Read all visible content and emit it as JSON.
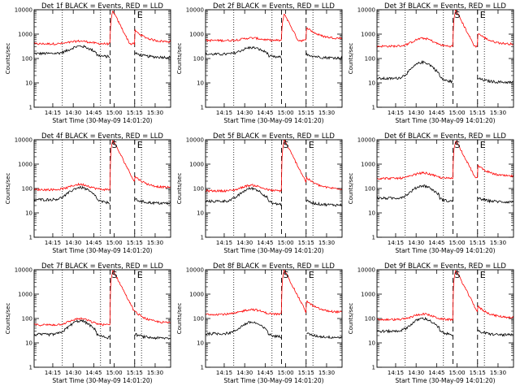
{
  "chart_data": {
    "type": "line",
    "x_unit": "UT",
    "y_scale": "log",
    "ylim": [
      1,
      10000
    ],
    "ylabel": "Counts/sec",
    "yticks": [
      1,
      10,
      100,
      1000,
      10000
    ],
    "ytick_labels": [
      "1",
      "10",
      "100",
      "1000",
      "10000"
    ],
    "xrange": [
      "14:01:20",
      "15:41:20"
    ],
    "xticks": [
      "14:15",
      "14:30",
      "14:45",
      "15:00",
      "15:15",
      "15:30"
    ],
    "dotted_lines": [
      "14:22",
      "14:50",
      "15:20"
    ],
    "dashed_lines": [
      "14:57",
      "15:15"
    ],
    "marker_labels": {
      "start": "S",
      "end": "E"
    },
    "colors": {
      "events": "#000000",
      "lld": "#ff0000"
    },
    "series_names": [
      "BLACK = Events",
      "RED = LLD"
    ],
    "panels": [
      {
        "title": "Det 1f BLACK = Events, RED = LLD",
        "xlabel": "Start Time (30-May-09 14:01:20)",
        "events_base": 160,
        "events_peak": 320,
        "lld_base": 400,
        "lld_flare": 9000,
        "show_s": false,
        "show_e": true
      },
      {
        "title": "Det 2f BLACK = Events, RED = LLD",
        "xlabel": "Start Time (30-May-09 14:01:20)",
        "events_base": 150,
        "events_peak": 280,
        "lld_base": 550,
        "lld_flare": 7000,
        "show_s": false,
        "show_e": false
      },
      {
        "title": "Det 3f BLACK = Events, RED = LLD",
        "xlabel": "Start Time (30-May-09 14:01:20)",
        "events_base": 15,
        "events_peak": 70,
        "lld_base": 320,
        "lld_flare": 10000,
        "show_s": true,
        "show_e": true
      },
      {
        "title": "Det 4f BLACK = Events, RED = LLD",
        "xlabel": "Start Time (30-May-09 14:01:20)",
        "events_base": 35,
        "events_peak": 110,
        "lld_base": 90,
        "lld_flare": 10000,
        "show_s": true,
        "show_e": true
      },
      {
        "title": "Det 5f BLACK = Events, RED = LLD",
        "xlabel": "Start Time (30-May-09 14:01:20)",
        "events_base": 30,
        "events_peak": 100,
        "lld_base": 80,
        "lld_flare": 10000,
        "show_s": true,
        "show_e": true
      },
      {
        "title": "Det 6f BLACK = Events, RED = LLD",
        "xlabel": "Start Time (30-May-09 14:01:20)",
        "events_base": 40,
        "events_peak": 130,
        "lld_base": 260,
        "lld_flare": 10000,
        "show_s": true,
        "show_e": true
      },
      {
        "title": "Det 7f BLACK = Events, RED = LLD",
        "xlabel": "Start Time (30-May-09 14:01:20)",
        "events_base": 22,
        "events_peak": 80,
        "lld_base": 55,
        "lld_flare": 10000,
        "show_s": true,
        "show_e": true
      },
      {
        "title": "Det 8f BLACK = Events, RED = LLD",
        "xlabel": "Start Time (30-May-09 14:01:20)",
        "events_base": 24,
        "events_peak": 70,
        "lld_base": 150,
        "lld_flare": 10000,
        "show_s": true,
        "show_e": true
      },
      {
        "title": "Det 9f BLACK = Events, RED = LLD",
        "xlabel": "Start Time (30-May-09 14:01:20)",
        "events_base": 30,
        "events_peak": 100,
        "lld_base": 90,
        "lld_flare": 10000,
        "show_s": true,
        "show_e": true
      }
    ]
  }
}
